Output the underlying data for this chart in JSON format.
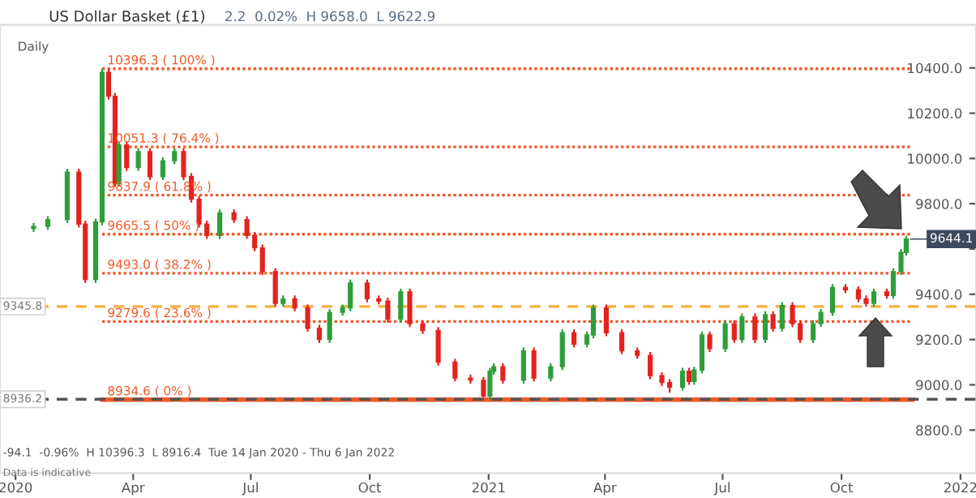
{
  "chart_data": {
    "type": "candlestick",
    "title": "US Dollar Basket (£1)",
    "subtitle": "2.2  0.02%  H 9658.0  L 9622.9",
    "annotations": [
      "Daily",
      "-94.1  -0.96%  H 10396.3  L 8916.4  Tue 14 Jan 2020 - Thu 6 Jan 2022",
      "Data is indicative",
      {
        "text": "9644.1",
        "x": "2021-11-20",
        "y": 9644.1
      }
    ],
    "x": [
      "2020-01-15",
      "2020-01-26",
      "2020-02-10",
      "2020-02-19",
      "2020-02-24",
      "2020-03-03",
      "2020-03-08",
      "2020-03-13",
      "2020-03-18",
      "2020-03-21",
      "2020-03-27",
      "2020-04-05",
      "2020-04-14",
      "2020-04-24",
      "2020-05-03",
      "2020-05-10",
      "2020-05-16",
      "2020-05-22",
      "2020-05-28",
      "2020-06-07",
      "2020-06-18",
      "2020-06-28",
      "2020-07-04",
      "2020-07-10",
      "2020-07-20",
      "2020-07-26",
      "2020-08-04",
      "2020-08-14",
      "2020-08-23",
      "2020-08-31",
      "2020-09-10",
      "2020-09-16",
      "2020-09-29",
      "2020-10-08",
      "2020-10-15",
      "2020-10-25",
      "2020-11-01",
      "2020-11-11",
      "2020-11-23",
      "2020-12-06",
      "2020-12-18",
      "2020-12-28",
      "2021-01-02",
      "2021-01-05",
      "2021-01-12",
      "2021-01-28",
      "2021-02-05",
      "2021-02-18",
      "2021-02-27",
      "2021-03-08",
      "2021-03-18",
      "2021-03-23",
      "2021-04-02",
      "2021-04-14",
      "2021-04-26",
      "2021-05-06",
      "2021-05-15",
      "2021-05-21",
      "2021-05-31",
      "2021-06-05",
      "2021-06-09",
      "2021-06-15",
      "2021-06-21",
      "2021-07-03",
      "2021-07-10",
      "2021-07-16",
      "2021-07-26",
      "2021-08-03",
      "2021-08-09",
      "2021-08-16",
      "2021-08-24",
      "2021-08-30",
      "2021-09-09",
      "2021-09-15",
      "2021-09-24",
      "2021-10-04",
      "2021-10-14",
      "2021-10-20",
      "2021-10-26",
      "2021-11-05",
      "2021-11-10",
      "2021-11-16",
      "2021-11-20"
    ],
    "ohlc": [
      [
        9690,
        9715,
        9675,
        9700
      ],
      [
        9700,
        9745,
        9685,
        9730
      ],
      [
        9730,
        9955,
        9715,
        9940
      ],
      [
        9940,
        9955,
        9695,
        9710
      ],
      [
        9710,
        9725,
        9450,
        9465
      ],
      [
        9465,
        9735,
        9450,
        9720
      ],
      [
        9720,
        10396.3,
        9705,
        10380
      ],
      [
        10380,
        10395,
        10260,
        10275
      ],
      [
        10275,
        10290,
        9875,
        9890
      ],
      [
        9890,
        10075,
        9875,
        10060
      ],
      [
        10060,
        10075,
        9945,
        9960
      ],
      [
        9960,
        10045,
        9945,
        10030
      ],
      [
        10030,
        10045,
        9905,
        9920
      ],
      [
        9920,
        10005,
        9905,
        9990
      ],
      [
        9990,
        10045,
        9975,
        10030
      ],
      [
        10030,
        10045,
        9905,
        9920
      ],
      [
        9920,
        9935,
        9805,
        9820
      ],
      [
        9820,
        9835,
        9695,
        9710
      ],
      [
        9710,
        9725,
        9645,
        9660
      ],
      [
        9660,
        9775,
        9645,
        9760
      ],
      [
        9760,
        9775,
        9715,
        9730
      ],
      [
        9730,
        9745,
        9645,
        9660
      ],
      [
        9660,
        9675,
        9590,
        9605
      ],
      [
        9605,
        9620,
        9485,
        9500
      ],
      [
        9500,
        9515,
        9345,
        9360
      ],
      [
        9360,
        9395,
        9345,
        9380
      ],
      [
        9380,
        9395,
        9325,
        9340
      ],
      [
        9340,
        9355,
        9235,
        9250
      ],
      [
        9250,
        9265,
        9185,
        9200
      ],
      [
        9200,
        9335,
        9185,
        9320
      ],
      [
        9320,
        9355,
        9305,
        9340
      ],
      [
        9340,
        9465,
        9325,
        9450
      ],
      [
        9450,
        9465,
        9365,
        9380
      ],
      [
        9380,
        9395,
        9355,
        9370
      ],
      [
        9370,
        9385,
        9275,
        9290
      ],
      [
        9290,
        9425,
        9275,
        9410
      ],
      [
        9410,
        9425,
        9255,
        9270
      ],
      [
        9270,
        9285,
        9225,
        9240
      ],
      [
        9240,
        9255,
        9085,
        9100
      ],
      [
        9100,
        9115,
        9015,
        9030
      ],
      [
        9030,
        9045,
        9005,
        9020
      ],
      [
        9020,
        9035,
        8945,
        8950
      ],
      [
        8950,
        9075,
        8935,
        9060
      ],
      [
        9060,
        9095,
        9045,
        9080
      ],
      [
        9080,
        9095,
        9005,
        9020
      ],
      [
        9020,
        9165,
        9005,
        9150
      ],
      [
        9150,
        9165,
        9015,
        9030
      ],
      [
        9030,
        9095,
        9015,
        9080
      ],
      [
        9080,
        9245,
        9065,
        9230
      ],
      [
        9230,
        9245,
        9165,
        9180
      ],
      [
        9180,
        9235,
        9165,
        9220
      ],
      [
        9220,
        9355,
        9205,
        9340
      ],
      [
        9340,
        9355,
        9215,
        9230
      ],
      [
        9230,
        9245,
        9135,
        9150
      ],
      [
        9150,
        9165,
        9115,
        9130
      ],
      [
        9130,
        9145,
        9025,
        9040
      ],
      [
        9040,
        9055,
        8995,
        9010
      ],
      [
        9010,
        9025,
        8965,
        8990
      ],
      [
        8990,
        9075,
        8975,
        9060
      ],
      [
        9060,
        9075,
        9000,
        9015
      ],
      [
        9015,
        9080,
        9000,
        9065
      ],
      [
        9065,
        9235,
        9050,
        9220
      ],
      [
        9220,
        9235,
        9145,
        9160
      ],
      [
        9160,
        9285,
        9145,
        9270
      ],
      [
        9270,
        9285,
        9185,
        9200
      ],
      [
        9200,
        9315,
        9185,
        9300
      ],
      [
        9300,
        9315,
        9185,
        9200
      ],
      [
        9200,
        9325,
        9185,
        9310
      ],
      [
        9310,
        9325,
        9235,
        9250
      ],
      [
        9250,
        9365,
        9235,
        9350
      ],
      [
        9350,
        9365,
        9255,
        9270
      ],
      [
        9270,
        9285,
        9185,
        9200
      ],
      [
        9200,
        9285,
        9185,
        9270
      ],
      [
        9270,
        9335,
        9255,
        9320
      ],
      [
        9320,
        9445,
        9305,
        9430
      ],
      [
        9430,
        9445,
        9405,
        9420
      ],
      [
        9420,
        9435,
        9365,
        9380
      ],
      [
        9380,
        9395,
        9345,
        9360
      ],
      [
        9360,
        9425,
        9345,
        9410
      ],
      [
        9410,
        9425,
        9380,
        9395
      ],
      [
        9395,
        9515,
        9380,
        9500
      ],
      [
        9500,
        9600,
        9485,
        9585
      ],
      [
        9585,
        9658,
        9570,
        9644.1
      ]
    ],
    "colors": [
      "#2e9e3a",
      "#2e9e3a",
      "#2e9e3a",
      "#e3231e",
      "#e3231e",
      "#2e9e3a",
      "#2e9e3a",
      "#e3231e",
      "#e3231e",
      "#2e9e3a",
      "#e3231e",
      "#2e9e3a",
      "#e3231e",
      "#2e9e3a",
      "#2e9e3a",
      "#e3231e",
      "#e3231e",
      "#e3231e",
      "#e3231e",
      "#2e9e3a",
      "#e3231e",
      "#e3231e",
      "#e3231e",
      "#e3231e",
      "#e3231e",
      "#2e9e3a",
      "#e3231e",
      "#e3231e",
      "#e3231e",
      "#2e9e3a",
      "#2e9e3a",
      "#2e9e3a",
      "#e3231e",
      "#e3231e",
      "#e3231e",
      "#2e9e3a",
      "#e3231e",
      "#e3231e",
      "#e3231e",
      "#e3231e",
      "#e3231e",
      "#e3231e",
      "#2e9e3a",
      "#2e9e3a",
      "#e3231e",
      "#2e9e3a",
      "#e3231e",
      "#2e9e3a",
      "#2e9e3a",
      "#e3231e",
      "#2e9e3a",
      "#2e9e3a",
      "#e3231e",
      "#e3231e",
      "#e3231e",
      "#e3231e",
      "#e3231e",
      "#e3231e",
      "#2e9e3a",
      "#e3231e",
      "#2e9e3a",
      "#2e9e3a",
      "#e3231e",
      "#2e9e3a",
      "#e3231e",
      "#2e9e3a",
      "#e3231e",
      "#2e9e3a",
      "#e3231e",
      "#2e9e3a",
      "#e3231e",
      "#e3231e",
      "#2e9e3a",
      "#2e9e3a",
      "#2e9e3a",
      "#e3231e",
      "#e3231e",
      "#e3231e",
      "#2e9e3a",
      "#e3231e",
      "#2e9e3a",
      "#2e9e3a",
      "#2e9e3a"
    ],
    "xlim": [
      "2019-12-20",
      "2022-01-13"
    ],
    "xticks": [
      {
        "value": "2020-01-01",
        "label": "2020"
      },
      {
        "value": "2020-04-01",
        "label": "Apr"
      },
      {
        "value": "2020-07-01",
        "label": "Jul"
      },
      {
        "value": "2020-10-01",
        "label": "Oct"
      },
      {
        "value": "2021-01-01",
        "label": "2021"
      },
      {
        "value": "2021-04-01",
        "label": "Apr"
      },
      {
        "value": "2021-07-01",
        "label": "Jul"
      },
      {
        "value": "2021-10-01",
        "label": "Oct"
      },
      {
        "value": "2022-01-01",
        "label": "2022"
      }
    ],
    "ylim": [
      8610,
      10590
    ],
    "yticks": [
      {
        "value": 8800,
        "label": "8800.0"
      },
      {
        "value": 9000,
        "label": "9000.0"
      },
      {
        "value": 9200,
        "label": "9200.0"
      },
      {
        "value": 9400,
        "label": "9400.0"
      },
      {
        "value": 9600,
        "label": null
      },
      {
        "value": 9800,
        "label": "9800.0"
      },
      {
        "value": 10000,
        "label": "10000.0"
      },
      {
        "value": 10200,
        "label": "10200.0"
      },
      {
        "value": 10400,
        "label": "10400.0"
      }
    ],
    "ref_lines": [
      {
        "axis": "y",
        "value": 10396.3,
        "label": "10396.3 ( 100% )",
        "color": "#f05a28",
        "line_style": "dotted"
      },
      {
        "axis": "y",
        "value": 10051.3,
        "label": "10051.3 ( 76.4% )",
        "color": "#f05a28",
        "line_style": "dotted"
      },
      {
        "axis": "y",
        "value": 9837.9,
        "label": "9837.9 ( 61.8% )",
        "color": "#f05a28",
        "line_style": "dotted"
      },
      {
        "axis": "y",
        "value": 9665.5,
        "label": "9665.5 ( 50% )",
        "color": "#f05a28",
        "line_style": "dotted"
      },
      {
        "axis": "y",
        "value": 9493.0,
        "label": "9493.0 ( 38.2% )",
        "color": "#f05a28",
        "line_style": "dotted"
      },
      {
        "axis": "y",
        "value": 9279.6,
        "label": "9279.6 ( 23.6% )",
        "color": "#f05a28",
        "line_style": "dotted"
      },
      {
        "axis": "y",
        "value": 8934.6,
        "label": "8934.6 ( 0% )",
        "color": "#f05a28",
        "line_style": "solid"
      },
      {
        "axis": "y",
        "value": 9345.8,
        "label": "9345.8",
        "color": "#f5b041",
        "line_style": "dashed"
      },
      {
        "axis": "y",
        "value": 8936.2,
        "label": "8936.2",
        "color": "#555555",
        "line_style": "dashed"
      }
    ],
    "grid": false,
    "legend": false
  }
}
